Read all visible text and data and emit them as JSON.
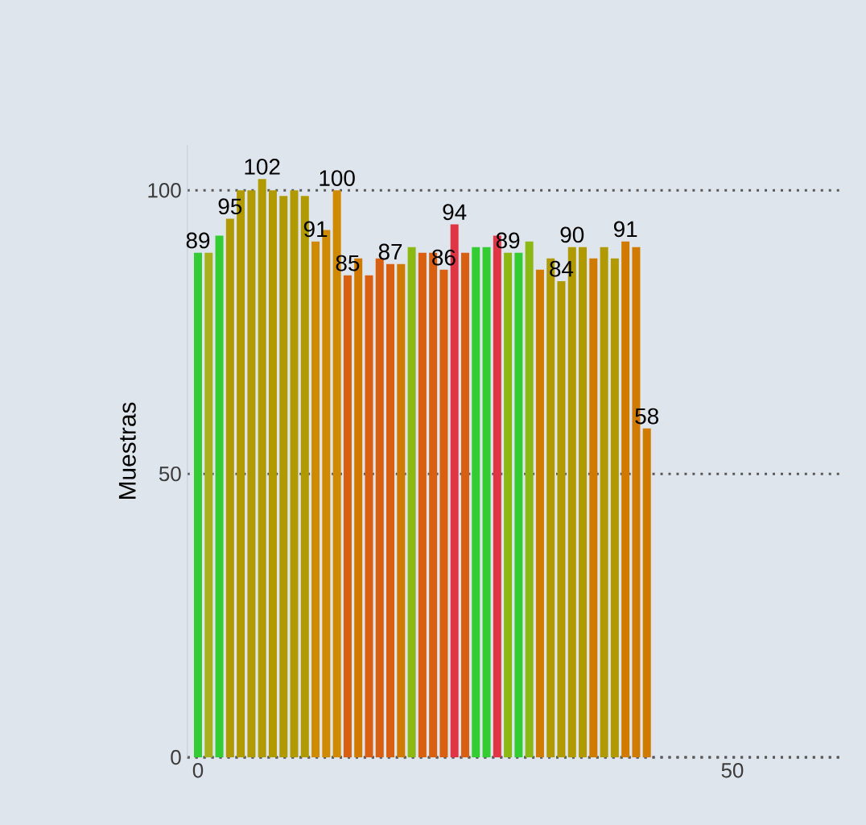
{
  "chart_data": {
    "type": "bar",
    "ylabel": "Muestras",
    "x": [
      0,
      1,
      2,
      3,
      4,
      5,
      6,
      7,
      8,
      9,
      10,
      11,
      12,
      13,
      14,
      15,
      16,
      17,
      18,
      19,
      20,
      21,
      22,
      23,
      24,
      25,
      26,
      27,
      28,
      29,
      30,
      31,
      32,
      33,
      34,
      35,
      36,
      37,
      38,
      39,
      40,
      41,
      42
    ],
    "values": [
      89,
      89,
      92,
      95,
      100,
      100,
      102,
      100,
      99,
      100,
      99,
      91,
      93,
      100,
      85,
      88,
      85,
      88,
      87,
      87,
      90,
      89,
      89,
      86,
      94,
      89,
      90,
      90,
      92,
      89,
      89,
      91,
      86,
      88,
      84,
      90,
      90,
      88,
      90,
      88,
      91,
      90,
      58
    ],
    "colors": [
      "#33cc33",
      "#a8b020",
      "#33cc33",
      "#b09a00",
      "#b09a00",
      "#b09a00",
      "#b09a00",
      "#b09a00",
      "#b09a00",
      "#b09a00",
      "#b09a00",
      "#d08a00",
      "#d08a00",
      "#d08a00",
      "#d86010",
      "#d07a00",
      "#d86010",
      "#d86010",
      "#d86010",
      "#d07a00",
      "#8cb814",
      "#d86010",
      "#d86010",
      "#d86010",
      "#e03545",
      "#d86010",
      "#33cc33",
      "#33cc33",
      "#e03545",
      "#8cb814",
      "#33cc33",
      "#8cb814",
      "#d07a00",
      "#b09a00",
      "#b09a00",
      "#b09a00",
      "#b09a00",
      "#d07a00",
      "#b09a00",
      "#b09a00",
      "#d07a00",
      "#d07a00",
      "#d07a00"
    ],
    "value_labels": [
      "89",
      null,
      null,
      "95",
      null,
      null,
      "102",
      null,
      null,
      null,
      null,
      "91",
      null,
      "100",
      "85",
      null,
      null,
      null,
      "87",
      null,
      null,
      null,
      null,
      "86",
      "94",
      null,
      null,
      null,
      null,
      "89",
      null,
      null,
      null,
      null,
      "84",
      "90",
      null,
      null,
      null,
      null,
      "91",
      null,
      "58"
    ],
    "xlim": [
      -1,
      60
    ],
    "ylim": [
      0,
      108
    ],
    "xticks": [
      0,
      50
    ],
    "yticks": [
      0,
      50,
      100
    ],
    "grid": "y"
  }
}
